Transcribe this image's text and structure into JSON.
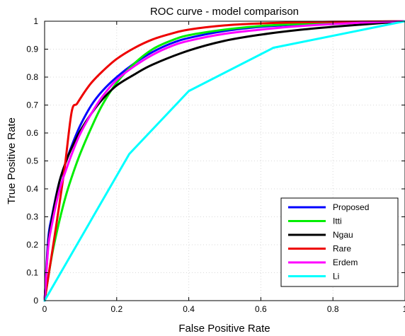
{
  "chart_data": {
    "type": "line",
    "title": "ROC curve - model comparison",
    "xlabel": "False Positive Rate",
    "ylabel": "True Positive Rate",
    "xlim": [
      0,
      1
    ],
    "ylim": [
      0,
      1
    ],
    "xticks": [
      0,
      0.2,
      0.4,
      0.6,
      0.8,
      1
    ],
    "xtick_labels": [
      "0",
      "0.2",
      "0.4",
      "0.6",
      "0.8",
      "1"
    ],
    "yticks": [
      0,
      0.1,
      0.2,
      0.3,
      0.4,
      0.5,
      0.6,
      0.7,
      0.8,
      0.9,
      1
    ],
    "ytick_labels": [
      "0",
      "0.1",
      "0.2",
      "0.3",
      "0.4",
      "0.5",
      "0.6",
      "0.7",
      "0.8",
      "0.9",
      "1"
    ],
    "grid": true,
    "legend_position": "bottom-right",
    "series": [
      {
        "name": "Proposed",
        "color": "#0000ff",
        "x": [
          0,
          0.01,
          0.02,
          0.04,
          0.06,
          0.08,
          0.1,
          0.13,
          0.16,
          0.2,
          0.25,
          0.3,
          0.35,
          0.4,
          0.5,
          0.6,
          0.7,
          0.8,
          0.9,
          1.0
        ],
        "y": [
          0,
          0.22,
          0.3,
          0.42,
          0.5,
          0.57,
          0.63,
          0.7,
          0.75,
          0.8,
          0.85,
          0.89,
          0.92,
          0.94,
          0.965,
          0.98,
          0.988,
          0.994,
          0.998,
          1.0
        ]
      },
      {
        "name": "Itti",
        "color": "#00ee00",
        "x": [
          0,
          0.02,
          0.04,
          0.06,
          0.08,
          0.1,
          0.13,
          0.16,
          0.2,
          0.25,
          0.3,
          0.35,
          0.4,
          0.5,
          0.6,
          0.7,
          0.8,
          0.9,
          1.0
        ],
        "y": [
          0,
          0.16,
          0.28,
          0.38,
          0.46,
          0.53,
          0.62,
          0.7,
          0.78,
          0.85,
          0.9,
          0.93,
          0.95,
          0.97,
          0.983,
          0.99,
          0.995,
          0.998,
          1.0
        ]
      },
      {
        "name": "Ngau",
        "color": "#000000",
        "x": [
          0,
          0.01,
          0.02,
          0.04,
          0.06,
          0.08,
          0.1,
          0.13,
          0.16,
          0.2,
          0.25,
          0.3,
          0.4,
          0.5,
          0.6,
          0.7,
          0.8,
          0.9,
          1.0
        ],
        "y": [
          0,
          0.2,
          0.29,
          0.42,
          0.5,
          0.56,
          0.61,
          0.67,
          0.72,
          0.77,
          0.81,
          0.845,
          0.895,
          0.93,
          0.952,
          0.968,
          0.98,
          0.99,
          1.0
        ]
      },
      {
        "name": "Rare",
        "color": "#ee0000",
        "x": [
          0,
          0.03,
          0.055,
          0.075,
          0.09,
          0.11,
          0.13,
          0.16,
          0.2,
          0.25,
          0.3,
          0.35,
          0.4,
          0.5,
          0.6,
          0.7,
          0.8,
          0.9,
          1.0
        ],
        "y": [
          0,
          0.25,
          0.47,
          0.675,
          0.705,
          0.745,
          0.78,
          0.82,
          0.865,
          0.905,
          0.935,
          0.955,
          0.97,
          0.985,
          0.992,
          0.996,
          0.998,
          0.999,
          1.0
        ]
      },
      {
        "name": "Erdem",
        "color": "#ff00ff",
        "x": [
          0,
          0.01,
          0.02,
          0.04,
          0.06,
          0.08,
          0.1,
          0.13,
          0.16,
          0.2,
          0.25,
          0.3,
          0.35,
          0.4,
          0.5,
          0.6,
          0.7,
          0.8,
          0.9,
          1.0
        ],
        "y": [
          0,
          0.19,
          0.27,
          0.39,
          0.47,
          0.54,
          0.6,
          0.67,
          0.73,
          0.79,
          0.84,
          0.88,
          0.91,
          0.93,
          0.955,
          0.97,
          0.982,
          0.99,
          0.996,
          1.0
        ]
      },
      {
        "name": "Li",
        "color": "#00ffff",
        "x": [
          0,
          0.235,
          0.4,
          0.635,
          1.0
        ],
        "y": [
          0,
          0.525,
          0.75,
          0.905,
          1.0
        ]
      }
    ]
  }
}
